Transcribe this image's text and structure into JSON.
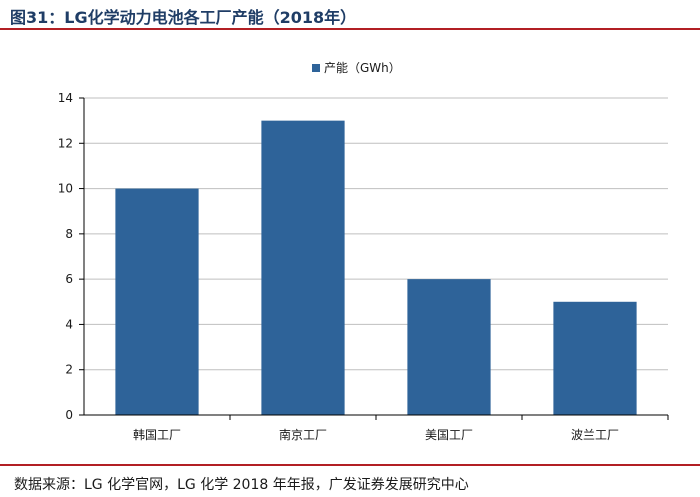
{
  "figure": {
    "title": "图31：LG化学动力电池各工厂产能（2018年）",
    "source": "数据来源：LG 化学官网，LG 化学 2018 年年报，广发证券发展研究中心"
  },
  "colors": {
    "bar": "#2e6399",
    "title": "#1f3d66",
    "rule": "#b21f24",
    "grid": "#bfbfbf"
  },
  "chart_data": {
    "type": "bar",
    "categories": [
      "韩国工厂",
      "南京工厂",
      "美国工厂",
      "波兰工厂"
    ],
    "series": [
      {
        "name": "产能（GWh）",
        "values": [
          10,
          13,
          6,
          5
        ]
      }
    ],
    "yticks": [
      0,
      2,
      4,
      6,
      8,
      10,
      12,
      14
    ],
    "ylim": [
      0,
      14
    ],
    "grid": true,
    "legend_position": "top-center"
  }
}
